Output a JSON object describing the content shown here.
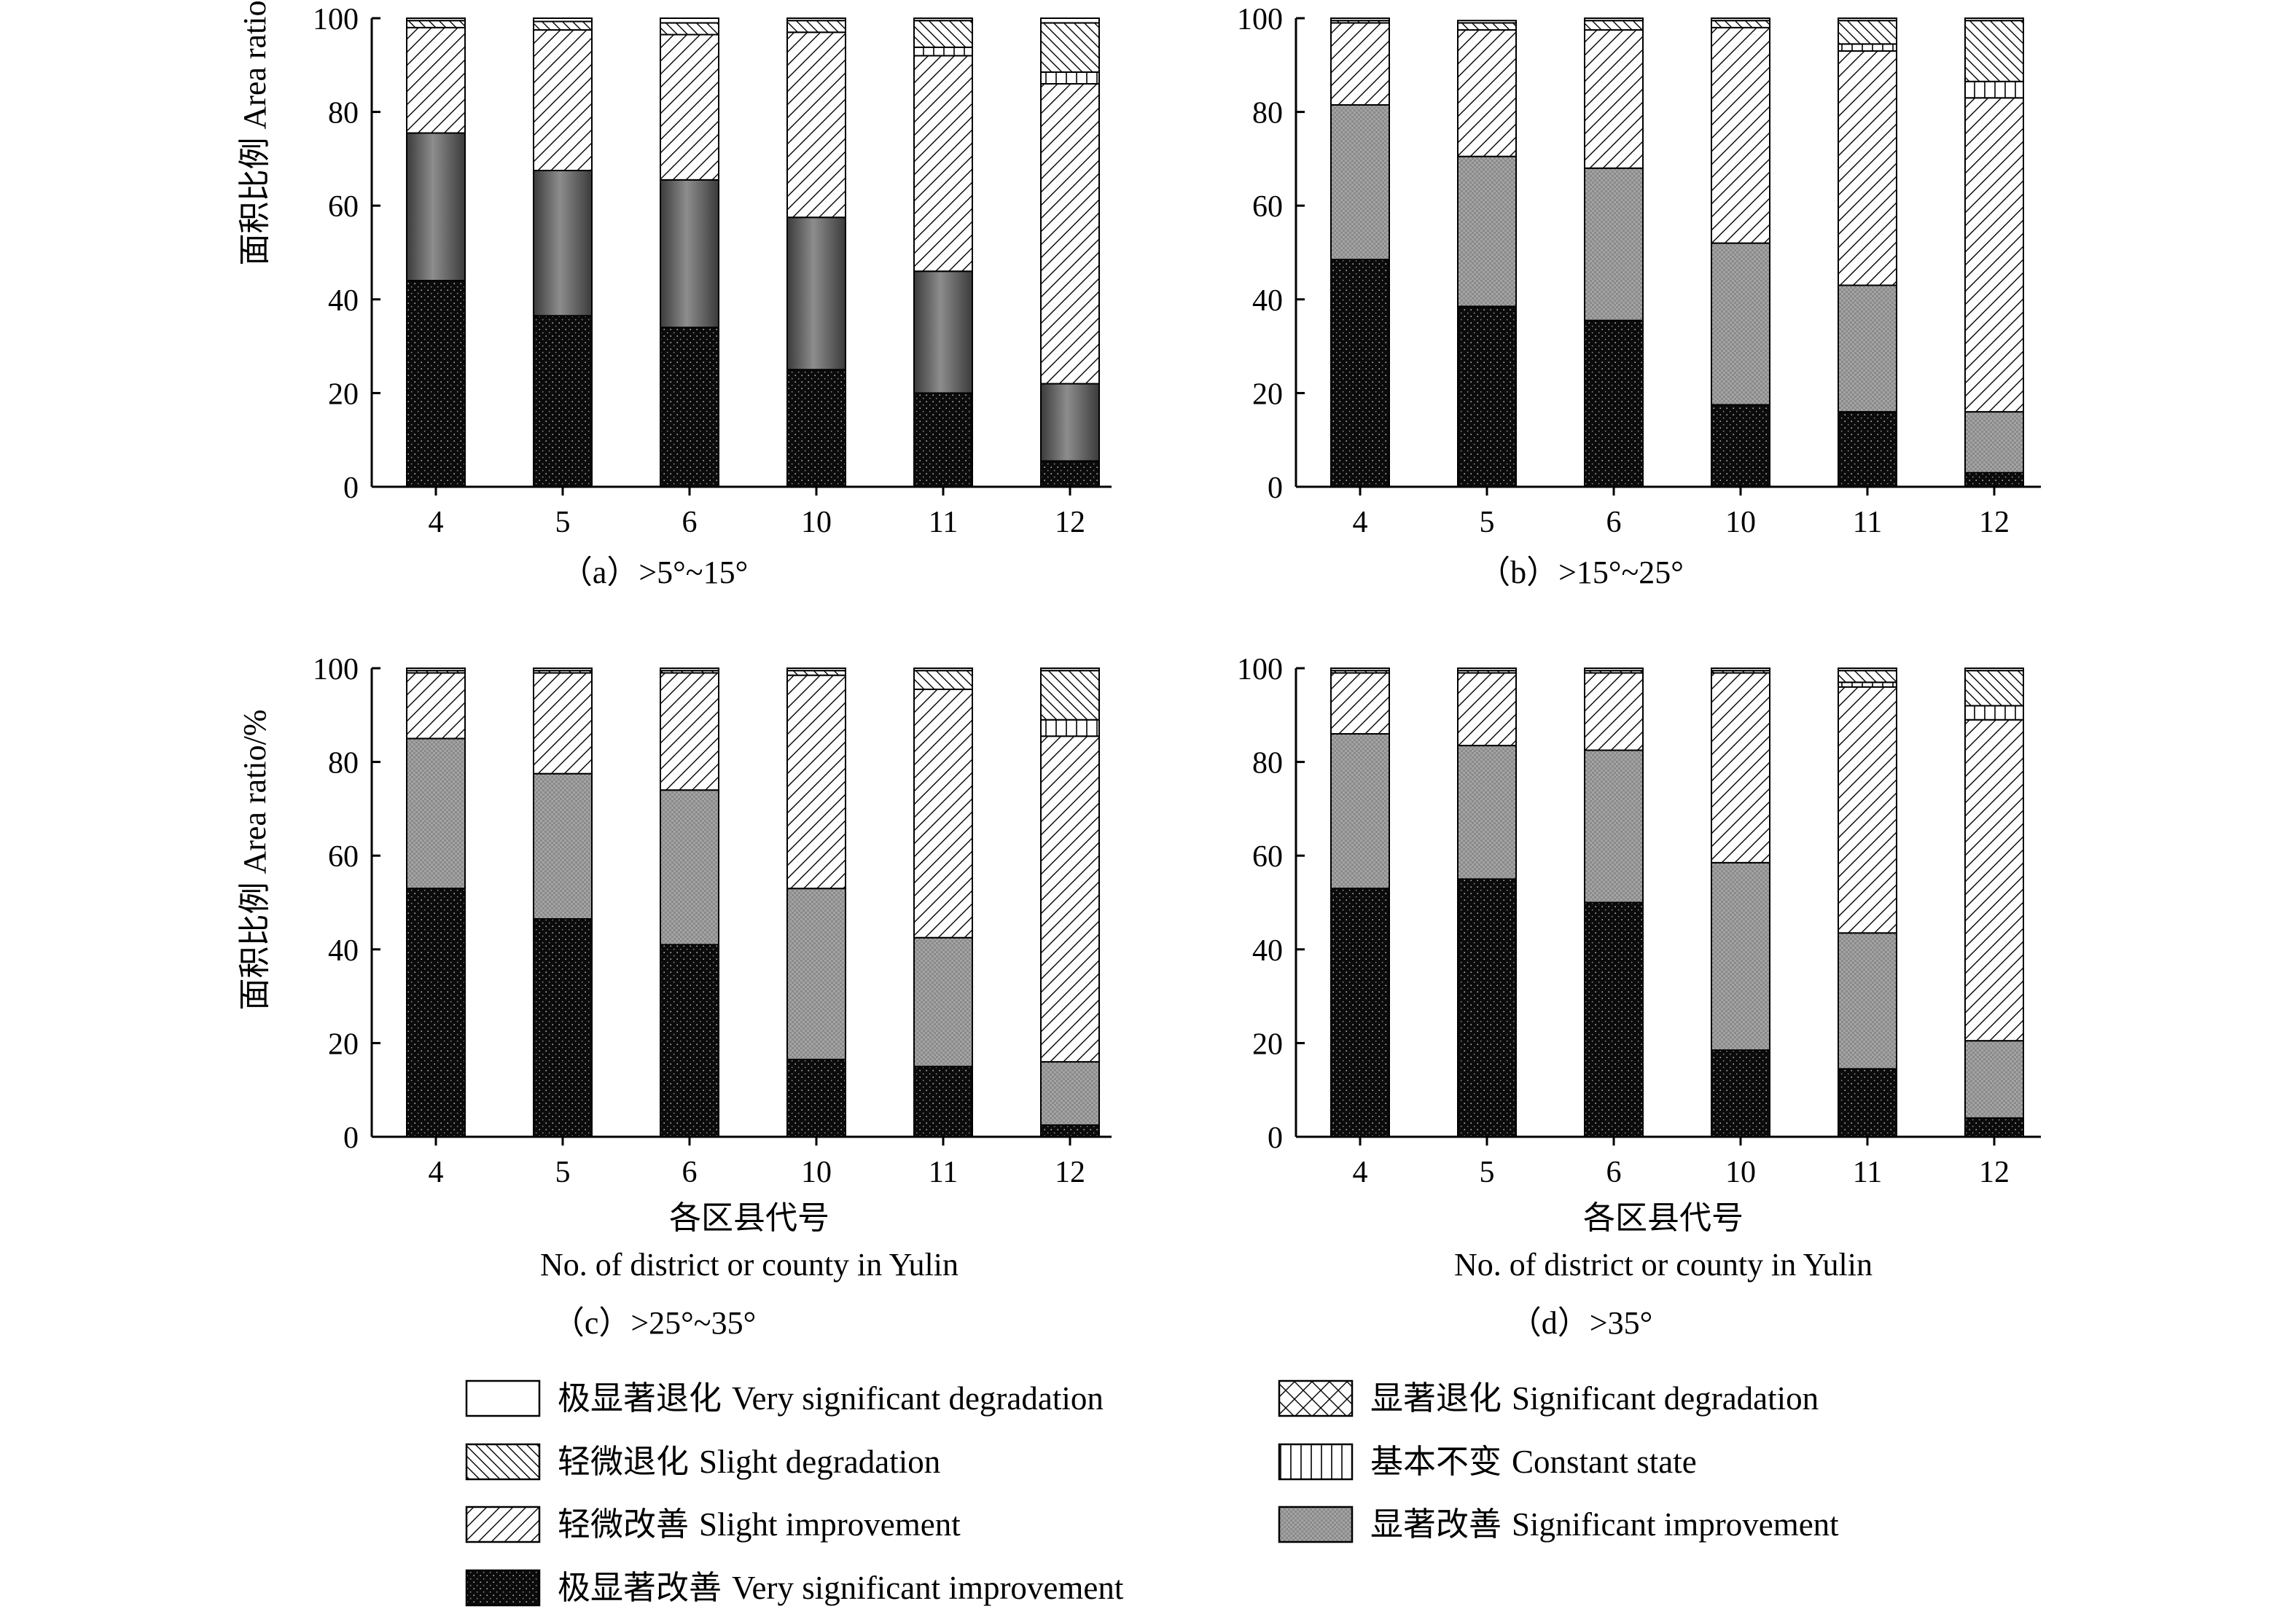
{
  "figure": {
    "x_label_cn": "各区县代号",
    "x_label_en": "No. of district or county in Yulin",
    "y_label": "面积比例 Area ratio/%"
  },
  "legend": [
    {
      "key": "vsd",
      "cn": "极显著退化",
      "en": "Very significant degradation",
      "pattern": "blank"
    },
    {
      "key": "sd",
      "cn": "显著退化",
      "en": "Significant degradation",
      "pattern": "crosshatch"
    },
    {
      "key": "sld",
      "cn": "轻微退化",
      "en": "Slight degradation",
      "pattern": "backslash"
    },
    {
      "key": "cs",
      "cn": "基本不变",
      "en": "Constant state",
      "pattern": "vertical"
    },
    {
      "key": "sli",
      "cn": "轻微改善",
      "en": "Slight improvement",
      "pattern": "slash"
    },
    {
      "key": "si",
      "cn": "显著改善",
      "en": "Significant improvement",
      "pattern": "gray"
    },
    {
      "key": "vsi",
      "cn": "极显著改善",
      "en": "Very significant improvement",
      "pattern": "black"
    }
  ],
  "chart_data": [
    {
      "type": "bar",
      "stacked": true,
      "panel": "a",
      "caption": "（a）>5°~15°",
      "categories": [
        "4",
        "5",
        "6",
        "10",
        "11",
        "12"
      ],
      "ylim": [
        0,
        100
      ],
      "yticks": [
        0,
        20,
        40,
        60,
        80,
        100
      ],
      "series": [
        {
          "key": "vsi",
          "name": "Very significant improvement",
          "values": [
            44,
            36.5,
            34,
            25,
            20,
            5.5
          ]
        },
        {
          "key": "si",
          "name": "Significant improvement",
          "values": [
            31.5,
            31,
            31.5,
            32.5,
            26,
            16.5
          ]
        },
        {
          "key": "sli",
          "name": "Slight improvement",
          "values": [
            22.5,
            30,
            31,
            39.5,
            46,
            64
          ]
        },
        {
          "key": "cs",
          "name": "Constant state",
          "values": [
            0,
            0,
            0,
            0,
            1.8,
            2.5
          ]
        },
        {
          "key": "sld",
          "name": "Slight degradation",
          "values": [
            1.5,
            1.8,
            2.5,
            2.5,
            5.7,
            10.5
          ]
        },
        {
          "key": "sd",
          "name": "Significant degradation",
          "values": [
            0,
            0,
            0,
            0,
            0,
            0
          ]
        },
        {
          "key": "vsd",
          "name": "Very significant degradation",
          "values": [
            0.5,
            0.7,
            1,
            0.5,
            0.5,
            1
          ]
        }
      ]
    },
    {
      "type": "bar",
      "stacked": true,
      "panel": "b",
      "caption": "（b）>15°~25°",
      "categories": [
        "4",
        "5",
        "6",
        "10",
        "11",
        "12"
      ],
      "ylim": [
        0,
        100
      ],
      "yticks": [
        0,
        20,
        40,
        60,
        80,
        100
      ],
      "series": [
        {
          "key": "vsi",
          "name": "Very significant improvement",
          "values": [
            48.5,
            38.5,
            35.5,
            17.5,
            16,
            3
          ]
        },
        {
          "key": "si",
          "name": "Significant improvement",
          "values": [
            33,
            32,
            32.5,
            34.5,
            27,
            13
          ]
        },
        {
          "key": "sli",
          "name": "Slight improvement",
          "values": [
            17.5,
            27,
            29.5,
            46,
            50,
            67
          ]
        },
        {
          "key": "cs",
          "name": "Constant state",
          "values": [
            0,
            0,
            0,
            0,
            1.5,
            3.5
          ]
        },
        {
          "key": "sld",
          "name": "Slight degradation",
          "values": [
            0.5,
            1.5,
            2,
            1.5,
            5,
            13
          ]
        },
        {
          "key": "sd",
          "name": "Significant degradation",
          "values": [
            0,
            0,
            0,
            0,
            0,
            0
          ]
        },
        {
          "key": "vsd",
          "name": "Very significant degradation",
          "values": [
            0.5,
            0.5,
            0.5,
            0.5,
            0.5,
            0.5
          ]
        }
      ]
    },
    {
      "type": "bar",
      "stacked": true,
      "panel": "c",
      "caption": "（c）>25°~35°",
      "categories": [
        "4",
        "5",
        "6",
        "10",
        "11",
        "12"
      ],
      "ylim": [
        0,
        100
      ],
      "yticks": [
        0,
        20,
        40,
        60,
        80,
        100
      ],
      "series": [
        {
          "key": "vsi",
          "name": "Very significant improvement",
          "values": [
            53,
            46.5,
            41,
            16.5,
            15,
            2.5
          ]
        },
        {
          "key": "si",
          "name": "Significant improvement",
          "values": [
            32,
            31,
            33,
            36.5,
            27.5,
            13.5
          ]
        },
        {
          "key": "sli",
          "name": "Slight improvement",
          "values": [
            14,
            21.5,
            25,
            45.5,
            53,
            69.5
          ]
        },
        {
          "key": "cs",
          "name": "Constant state",
          "values": [
            0,
            0,
            0,
            0,
            0,
            3.5
          ]
        },
        {
          "key": "sld",
          "name": "Slight degradation",
          "values": [
            0.5,
            0.5,
            0.5,
            1,
            4,
            10.5
          ]
        },
        {
          "key": "sd",
          "name": "Significant degradation",
          "values": [
            0,
            0,
            0,
            0,
            0,
            0
          ]
        },
        {
          "key": "vsd",
          "name": "Very significant degradation",
          "values": [
            0.5,
            0.5,
            0.5,
            0.5,
            0.5,
            0.5
          ]
        }
      ]
    },
    {
      "type": "bar",
      "stacked": true,
      "panel": "d",
      "caption": "（d）>35°",
      "categories": [
        "4",
        "5",
        "6",
        "10",
        "11",
        "12"
      ],
      "ylim": [
        0,
        100
      ],
      "yticks": [
        0,
        20,
        40,
        60,
        80,
        100
      ],
      "series": [
        {
          "key": "vsi",
          "name": "Very significant improvement",
          "values": [
            53,
            55,
            50,
            18.5,
            14.5,
            4
          ]
        },
        {
          "key": "si",
          "name": "Significant improvement",
          "values": [
            33,
            28.5,
            32.5,
            40,
            29,
            16.5
          ]
        },
        {
          "key": "sli",
          "name": "Slight improvement",
          "values": [
            13,
            15.5,
            16.5,
            40.5,
            52.5,
            68.5
          ]
        },
        {
          "key": "cs",
          "name": "Constant state",
          "values": [
            0,
            0,
            0,
            0,
            1,
            3
          ]
        },
        {
          "key": "sld",
          "name": "Slight degradation",
          "values": [
            0.5,
            0.5,
            0.5,
            0.5,
            2.5,
            7.5
          ]
        },
        {
          "key": "sd",
          "name": "Significant degradation",
          "values": [
            0,
            0,
            0,
            0,
            0,
            0
          ]
        },
        {
          "key": "vsd",
          "name": "Very significant degradation",
          "values": [
            0.5,
            0.5,
            0.5,
            0.5,
            0.5,
            0.5
          ]
        }
      ]
    }
  ]
}
